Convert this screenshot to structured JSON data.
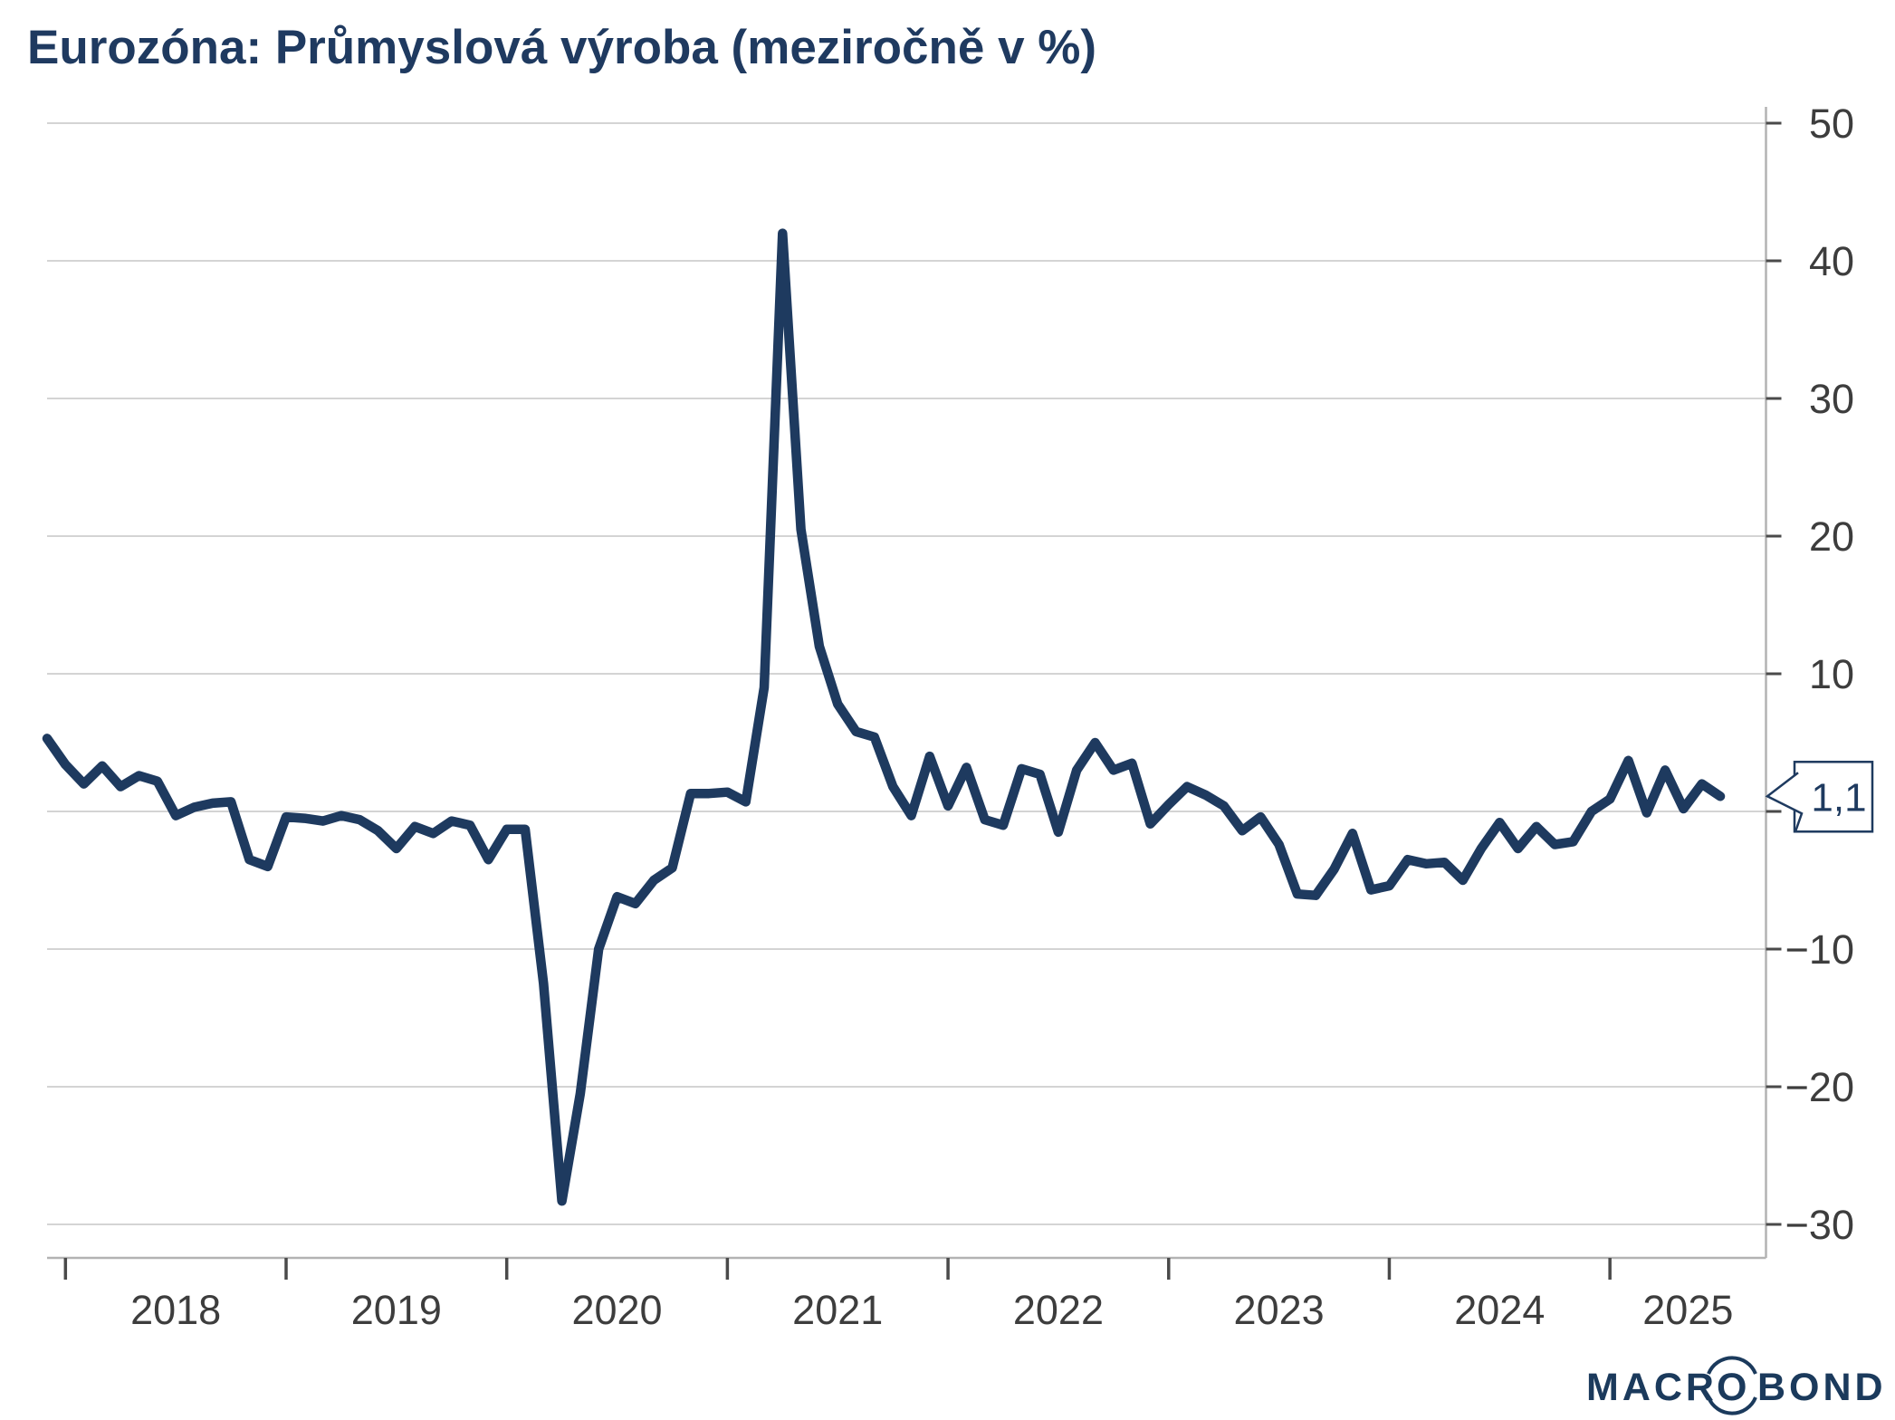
{
  "title": "Eurozóna: Průmyslová výroba (meziročně v %)",
  "callout": {
    "label": "1,1",
    "value": 1.1
  },
  "branding": {
    "name_part1": "MACR",
    "name_part2": "O",
    "name_part3": "BOND"
  },
  "colors": {
    "title": "#1f3a60",
    "series_line": "#1e3a5f",
    "grid": "#d4d4d4",
    "axis": "#b3b3b3",
    "tick_mark": "#4a4a4a",
    "tick_label": "#3d3d3d",
    "callout_border": "#1e3a5f",
    "callout_text": "#1e3a5f",
    "logo": "#1b3a5c",
    "background": "#ffffff"
  },
  "y_axis": {
    "side": "right",
    "tick_values": [
      50,
      40,
      30,
      20,
      10,
      0,
      -10,
      -20,
      -30
    ],
    "tick_labels": [
      "50",
      "40",
      "30",
      "20",
      "10",
      "",
      "−10",
      "−20",
      "−30"
    ]
  },
  "x_axis": {
    "year_labels": [
      "2018",
      "2019",
      "2020",
      "2021",
      "2022",
      "2023",
      "2024",
      "2025"
    ]
  },
  "chart_data": {
    "type": "line",
    "title": "Eurozóna: Průmyslová výroba (meziročně v %)",
    "xlabel": "",
    "ylabel": "",
    "ylim": [
      -32.5,
      51.3
    ],
    "grid": true,
    "legend": "none",
    "frequency": "monthly",
    "x_start": "2017-12",
    "x_end": "2025-07",
    "last_value_label": "1,1",
    "x": [
      "2017-12",
      "2018-01",
      "2018-02",
      "2018-03",
      "2018-04",
      "2018-05",
      "2018-06",
      "2018-07",
      "2018-08",
      "2018-09",
      "2018-10",
      "2018-11",
      "2018-12",
      "2019-01",
      "2019-02",
      "2019-03",
      "2019-04",
      "2019-05",
      "2019-06",
      "2019-07",
      "2019-08",
      "2019-09",
      "2019-10",
      "2019-11",
      "2019-12",
      "2020-01",
      "2020-02",
      "2020-03",
      "2020-04",
      "2020-05",
      "2020-06",
      "2020-07",
      "2020-08",
      "2020-09",
      "2020-10",
      "2020-11",
      "2020-12",
      "2021-01",
      "2021-02",
      "2021-03",
      "2021-04",
      "2021-05",
      "2021-06",
      "2021-07",
      "2021-08",
      "2021-09",
      "2021-10",
      "2021-11",
      "2021-12",
      "2022-01",
      "2022-02",
      "2022-03",
      "2022-04",
      "2022-05",
      "2022-06",
      "2022-07",
      "2022-08",
      "2022-09",
      "2022-10",
      "2022-11",
      "2022-12",
      "2023-01",
      "2023-02",
      "2023-03",
      "2023-04",
      "2023-05",
      "2023-06",
      "2023-07",
      "2023-08",
      "2023-09",
      "2023-10",
      "2023-11",
      "2023-12",
      "2024-01",
      "2024-02",
      "2024-03",
      "2024-04",
      "2024-05",
      "2024-06",
      "2024-07",
      "2024-08",
      "2024-09",
      "2024-10",
      "2024-11",
      "2024-12",
      "2025-01",
      "2025-02",
      "2025-03",
      "2025-04",
      "2025-05",
      "2025-06",
      "2025-07"
    ],
    "values": [
      5.3,
      3.4,
      2.0,
      3.3,
      1.8,
      2.6,
      2.2,
      -0.3,
      0.3,
      0.6,
      0.7,
      -3.5,
      -4.0,
      -0.4,
      -0.5,
      -0.7,
      -0.3,
      -0.6,
      -1.4,
      -2.7,
      -1.1,
      -1.6,
      -0.7,
      -1.0,
      -3.5,
      -1.3,
      -1.3,
      -12.5,
      -28.3,
      -20.5,
      -10.0,
      -6.2,
      -6.7,
      -5.0,
      -4.1,
      1.3,
      1.3,
      1.4,
      0.7,
      9.0,
      42.0,
      20.5,
      12.0,
      7.8,
      5.8,
      5.4,
      1.8,
      -0.3,
      4.0,
      0.4,
      3.2,
      -0.6,
      -1.0,
      3.1,
      2.7,
      -1.5,
      3.0,
      5.0,
      3.0,
      3.5,
      -0.9,
      0.5,
      1.8,
      1.2,
      0.4,
      -1.4,
      -0.4,
      -2.4,
      -6.0,
      -6.1,
      -4.2,
      -1.6,
      -5.7,
      -5.4,
      -3.5,
      -3.8,
      -3.7,
      -5.0,
      -2.7,
      -0.8,
      -2.7,
      -1.1,
      -2.4,
      -2.2,
      0.0,
      0.9,
      3.7,
      -0.1,
      3.0,
      0.2,
      2.0,
      1.1
    ]
  }
}
